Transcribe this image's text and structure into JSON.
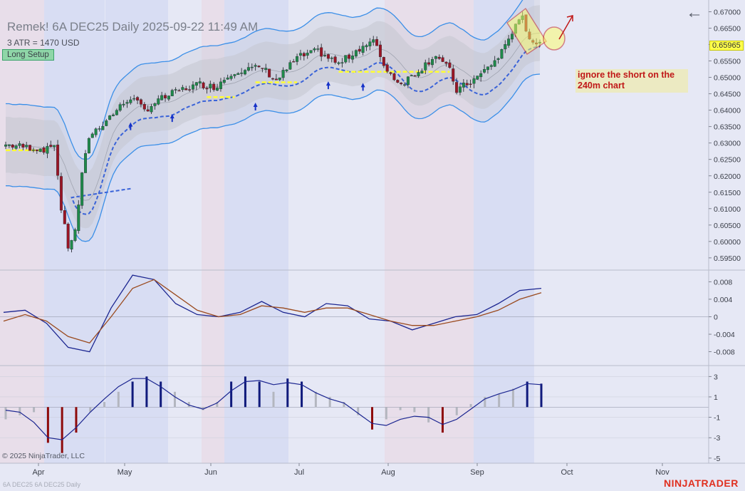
{
  "header": {
    "title": "Remek!  6A DEC25  Daily  2025-09-22 11:49 AM",
    "atr_text": "3 ATR = 1470 USD",
    "setup_badge": "Long Setup"
  },
  "annotation": {
    "note": "ignore the short on the 240m chart"
  },
  "footer": {
    "copyright": "© 2025 NinjaTrader, LLC",
    "symbol_watermark": "6A DEC25 6A DEC25 Daily",
    "brand": "NINJATRADER"
  },
  "toolbar": {
    "back_icon": "←"
  },
  "last_price": "0.65965",
  "colors": {
    "up": "#1f8a4a",
    "down": "#9b1525",
    "channel_band": "#3b8fe8",
    "ma_dashed": "#3a63d8",
    "support_yellow": "#ffff30",
    "osc1": "#1b2590",
    "osc2": "#9a4a1e",
    "hist_up": "#101a7c",
    "hist_down": "#8e0a0a",
    "hist_neutral": "#b3b6bf",
    "arrow": "#1632c8",
    "annotation": "#c01818",
    "zone_red": "#e8dce8",
    "zone_blue": "#d5daf2"
  },
  "chart_data": [
    {
      "type": "candlestick",
      "title": "Remek!  6A DEC25  Daily  2025-09-22 11:49 AM",
      "ylim": [
        0.5915,
        0.6725
      ],
      "y_ticks": [
        "0.67000",
        "0.66500",
        "0.66000",
        "0.65500",
        "0.65000",
        "0.64500",
        "0.64000",
        "0.63500",
        "0.63000",
        "0.62500",
        "0.62000",
        "0.61500",
        "0.61000",
        "0.60500",
        "0.60000",
        "0.59500"
      ],
      "x_ticks": [
        "Apr",
        "May",
        "Jun",
        "Jul",
        "Aug",
        "Sep",
        "Oct",
        "Nov"
      ],
      "annotations": [
        "ignore the short on the 240m chart"
      ]
    },
    {
      "type": "line",
      "ylim": [
        -0.011,
        0.0105
      ],
      "y_ticks": [
        "0.008",
        "0.004",
        "0",
        "-0.004",
        "-0.008"
      ],
      "series": [
        {
          "values": [
            0.001,
            0.0015,
            -0.0015,
            -0.007,
            -0.008,
            0.002,
            0.0095,
            0.0085,
            0.003,
            0.0005,
            0,
            0.001,
            0.0035,
            0.001,
            0,
            0.003,
            0.0025,
            -0.0005,
            -0.001,
            -0.003,
            -0.0015,
            0,
            0.0005,
            0.003,
            0.006,
            0.0065
          ]
        },
        {
          "values": [
            -0.001,
            0.0005,
            -0.001,
            -0.0045,
            -0.006,
            0,
            0.0065,
            0.0085,
            0.005,
            0.0015,
            0,
            0.0005,
            0.0025,
            0.002,
            0.001,
            0.002,
            0.002,
            0.0005,
            -0.001,
            -0.002,
            -0.002,
            -0.001,
            0,
            0.0015,
            0.004,
            0.0055
          ]
        }
      ]
    },
    {
      "type": "bar",
      "ylim": [
        -5.5,
        4
      ],
      "y_ticks": [
        "3",
        "1",
        "-1",
        "-3",
        "-5"
      ],
      "series": [
        {
          "values": [
            -1.2,
            -0.8,
            -0.5,
            -3.5,
            -4.5,
            -2.5,
            -0.5,
            0.5,
            1.5,
            2.5,
            3,
            2.5,
            1.5,
            0.5,
            -0.3,
            0.5,
            2.5,
            3,
            2.5,
            1.5,
            2.8,
            2.5,
            1.5,
            1,
            0.5,
            -0.8,
            -2.2,
            -1.2,
            -0.3,
            -0.5,
            -1.5,
            -2.5,
            -0.8,
            0.3,
            1,
            1.3,
            1.8,
            2.5,
            2.3
          ]
        },
        {
          "values": [
            -0.3,
            -0.5,
            -1.5,
            -3,
            -3.2,
            -2,
            -0.5,
            0.8,
            2,
            2.8,
            2.8,
            2,
            1,
            0.2,
            -0.2,
            0.4,
            1.6,
            2.5,
            2.6,
            2.2,
            2.4,
            2.2,
            1.4,
            0.8,
            0.4,
            -0.6,
            -1.6,
            -1.8,
            -1.2,
            -0.9,
            -1,
            -1.7,
            -1.2,
            -0.2,
            0.8,
            1.3,
            1.7,
            2.3,
            2.2
          ]
        }
      ]
    }
  ]
}
